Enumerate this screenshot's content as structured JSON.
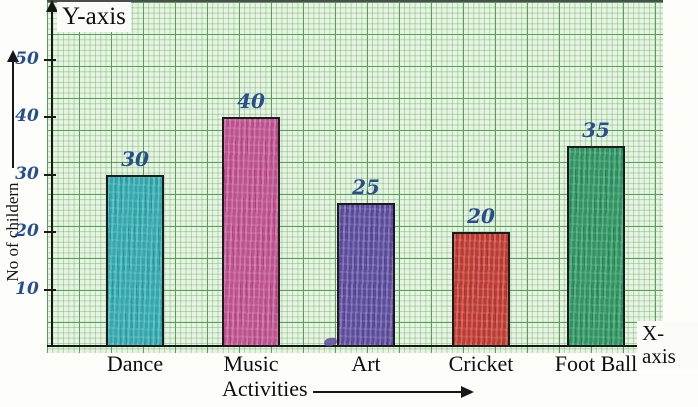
{
  "figure": {
    "y_axis_label": "Y-axis",
    "x_axis_label": "X-axis",
    "ylabel": "No of childern",
    "xlabel": "Activities"
  },
  "chart_data": {
    "type": "bar",
    "title": "",
    "categories": [
      "Dance",
      "Music",
      "Art",
      "Cricket",
      "Foot Ball"
    ],
    "values": [
      30,
      40,
      25,
      20,
      35
    ],
    "bar_colors": [
      "#2fa9ae",
      "#bf4f8e",
      "#5c4a9e",
      "#c0392f",
      "#2b9461"
    ],
    "xlabel": "Activities",
    "ylabel": "No of childern",
    "y_axis_arrow_label": "Y-axis",
    "x_axis_arrow_label": "X-axis",
    "y_ticks": [
      10,
      20,
      30,
      40,
      50
    ],
    "ylim": [
      0,
      55
    ],
    "grid": true,
    "legend": false,
    "style": "hand-drawn crayon bars on green graph paper",
    "value_label_color": "#274e8d",
    "paper_color": "#e7f4e1",
    "grid_major_color": "#57a05b"
  }
}
